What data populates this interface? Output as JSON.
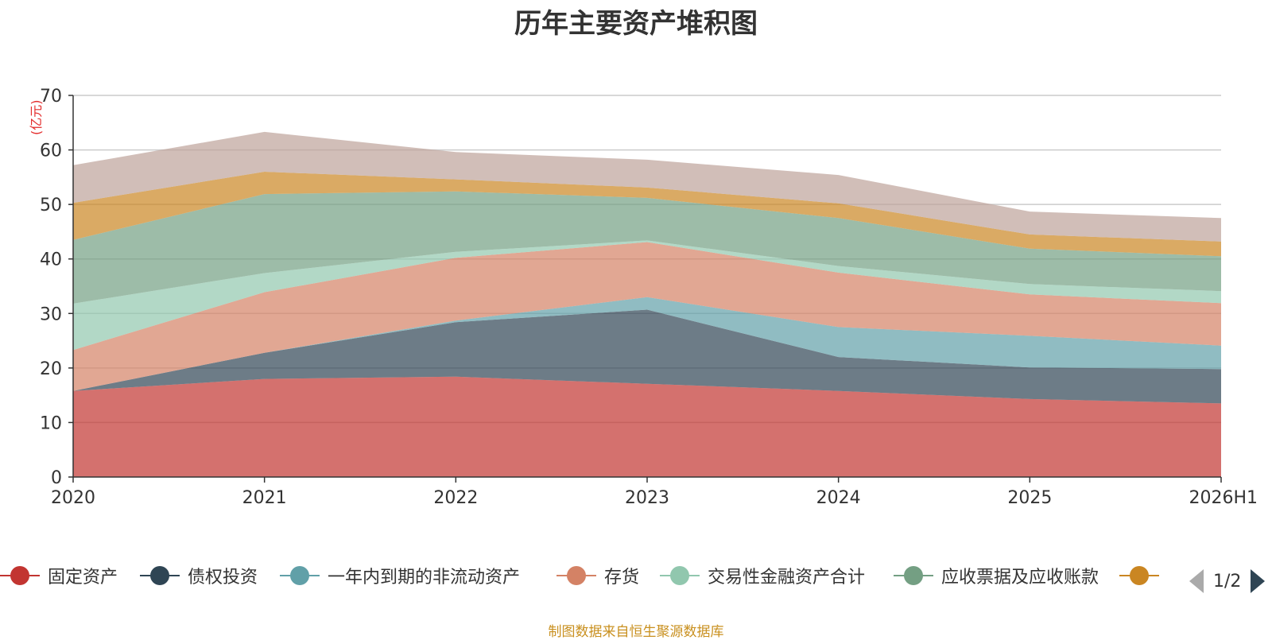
{
  "title": "历年主要资产堆积图",
  "source_text": "制图数据来自恒生聚源数据库",
  "pager": {
    "text": "1/2"
  },
  "chart_data": {
    "type": "area",
    "stacked": true,
    "title": "历年主要资产堆积图",
    "ylabel": "(亿元)",
    "xlabel": "",
    "ylim": [
      0,
      70
    ],
    "yticks": [
      0,
      10,
      20,
      30,
      40,
      50,
      60,
      70
    ],
    "grid": true,
    "legend_position": "bottom",
    "categories": [
      "2020",
      "2021",
      "2022",
      "2023",
      "2024",
      "2025",
      "2026H1"
    ],
    "series": [
      {
        "name": "固定资产",
        "color": "#c23531",
        "values": [
          15.8,
          18.0,
          18.4,
          17.1,
          15.8,
          14.3,
          13.5
        ]
      },
      {
        "name": "债权投资",
        "color": "#2f4554",
        "values": [
          0,
          4.8,
          10.0,
          13.6,
          6.2,
          5.8,
          6.3
        ]
      },
      {
        "name": "一年内到期的非流动资产",
        "color": "#61a0a8",
        "values": [
          0,
          0,
          0.3,
          2.3,
          5.5,
          5.8,
          4.3
        ]
      },
      {
        "name": "存货",
        "color": "#d48265",
        "values": [
          7.5,
          11.1,
          11.5,
          10.1,
          10.0,
          7.6,
          7.8
        ]
      },
      {
        "name": "交易性金融资产合计",
        "color": "#91c7ae",
        "values": [
          8.5,
          3.5,
          1.1,
          0.3,
          1.2,
          1.9,
          2.2
        ]
      },
      {
        "name": "应收票据及应收账款",
        "color": "#749f83",
        "values": [
          11.7,
          14.5,
          11.1,
          7.8,
          8.8,
          6.5,
          6.4
        ]
      },
      {
        "name": "",
        "color": "#ca8622",
        "values": [
          6.8,
          4.1,
          2.2,
          1.9,
          2.7,
          2.6,
          2.7
        ]
      },
      {
        "name": "",
        "color": "#bda29a",
        "values": [
          6.9,
          7.3,
          5.0,
          5.1,
          5.2,
          4.2,
          4.3
        ]
      }
    ]
  }
}
